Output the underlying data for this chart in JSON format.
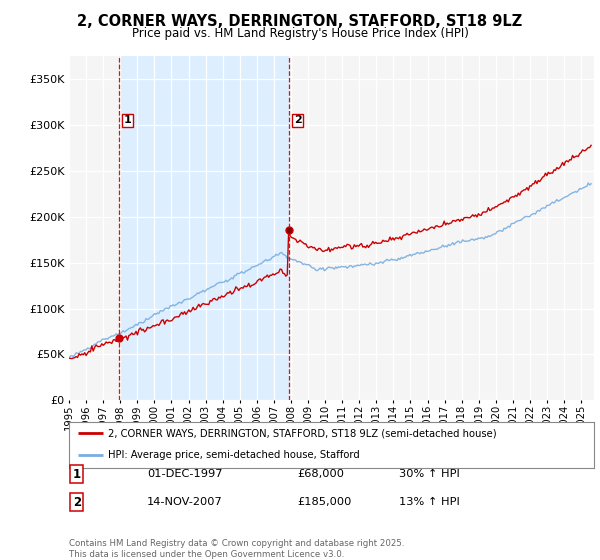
{
  "title": "2, CORNER WAYS, DERRINGTON, STAFFORD, ST18 9LZ",
  "subtitle": "Price paid vs. HM Land Registry's House Price Index (HPI)",
  "legend_line1": "2, CORNER WAYS, DERRINGTON, STAFFORD, ST18 9LZ (semi-detached house)",
  "legend_line2": "HPI: Average price, semi-detached house, Stafford",
  "footer": "Contains HM Land Registry data © Crown copyright and database right 2025.\nThis data is licensed under the Open Government Licence v3.0.",
  "sale1_label": "1",
  "sale1_date": "01-DEC-1997",
  "sale1_price": "£68,000",
  "sale1_hpi": "30% ↑ HPI",
  "sale2_label": "2",
  "sale2_date": "14-NOV-2007",
  "sale2_price": "£185,000",
  "sale2_hpi": "13% ↑ HPI",
  "sale1_x": 1997.92,
  "sale2_x": 2007.87,
  "sale1_y": 68000,
  "sale2_y": 185000,
  "red_color": "#cc0000",
  "blue_color": "#7aade0",
  "highlight_color": "#ddeeff",
  "ylim": [
    0,
    375000
  ],
  "yticks": [
    0,
    50000,
    100000,
    150000,
    200000,
    250000,
    300000,
    350000
  ],
  "xmin": 1995.0,
  "xmax": 2025.75,
  "background_color": "#ffffff",
  "plot_bg_color": "#f5f5f5"
}
